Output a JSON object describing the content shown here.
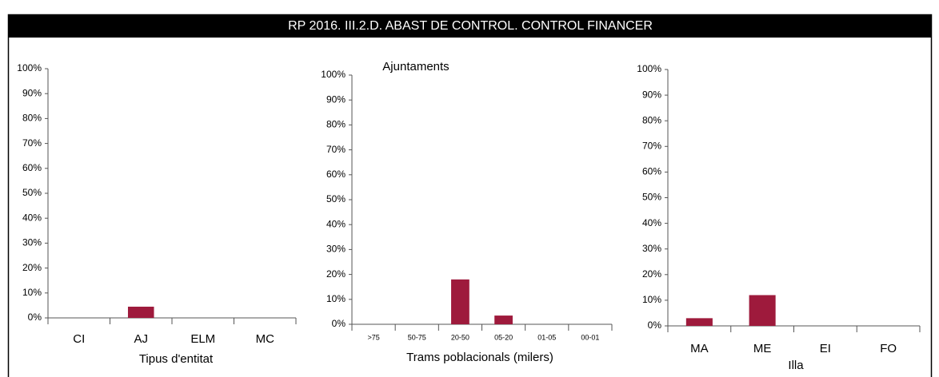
{
  "title": "RP 2016. III.2.D. ABAST DE CONTROL. CONTROL FINANCER",
  "chart_data": [
    {
      "type": "bar",
      "x_label": "Tipus d'entitat",
      "categories": [
        "CI",
        "AJ",
        "ELM",
        "MC"
      ],
      "values": [
        0,
        4.5,
        0,
        0
      ],
      "color": "#9e1a3c",
      "ylim": [
        0,
        100
      ],
      "yticks": [
        {
          "value": 0,
          "label": "0%"
        },
        {
          "value": 10,
          "label": "10%"
        },
        {
          "value": 20,
          "label": "20%"
        },
        {
          "value": 30,
          "label": "30%"
        },
        {
          "value": 40,
          "label": "40%"
        },
        {
          "value": 50,
          "label": "50%"
        },
        {
          "value": 60,
          "label": "60%"
        },
        {
          "value": 70,
          "label": "70%"
        },
        {
          "value": 80,
          "label": "80%"
        },
        {
          "value": 90,
          "label": "90%"
        },
        {
          "value": 100,
          "label": "100%"
        }
      ]
    },
    {
      "type": "bar",
      "title": "Ajuntaments",
      "x_label": "Trams poblacionals (milers)",
      "categories": [
        ">75",
        "50-75",
        "20-50",
        "05-20",
        "01-05",
        "00-01"
      ],
      "values": [
        0,
        0,
        18,
        3.5,
        0,
        0
      ],
      "color": "#9e1a3c",
      "ylim": [
        0,
        100
      ],
      "yticks": [
        {
          "value": 0,
          "label": "0%"
        },
        {
          "value": 10,
          "label": "10%"
        },
        {
          "value": 20,
          "label": "20%"
        },
        {
          "value": 30,
          "label": "30%"
        },
        {
          "value": 40,
          "label": "40%"
        },
        {
          "value": 50,
          "label": "50%"
        },
        {
          "value": 60,
          "label": "60%"
        },
        {
          "value": 70,
          "label": "70%"
        },
        {
          "value": 80,
          "label": "80%"
        },
        {
          "value": 90,
          "label": "90%"
        },
        {
          "value": 100,
          "label": "100%"
        }
      ]
    },
    {
      "type": "bar",
      "x_label": "Illa",
      "categories": [
        "MA",
        "ME",
        "EI",
        "FO"
      ],
      "values": [
        3,
        12,
        0,
        0
      ],
      "color": "#9e1a3c",
      "ylim": [
        0,
        100
      ],
      "yticks": [
        {
          "value": 0,
          "label": "0%"
        },
        {
          "value": 10,
          "label": "10%"
        },
        {
          "value": 20,
          "label": "20%"
        },
        {
          "value": 30,
          "label": "30%"
        },
        {
          "value": 40,
          "label": "40%"
        },
        {
          "value": 50,
          "label": "50%"
        },
        {
          "value": 60,
          "label": "60%"
        },
        {
          "value": 70,
          "label": "70%"
        },
        {
          "value": 80,
          "label": "80%"
        },
        {
          "value": 90,
          "label": "90%"
        },
        {
          "value": 100,
          "label": "100%"
        }
      ]
    }
  ]
}
